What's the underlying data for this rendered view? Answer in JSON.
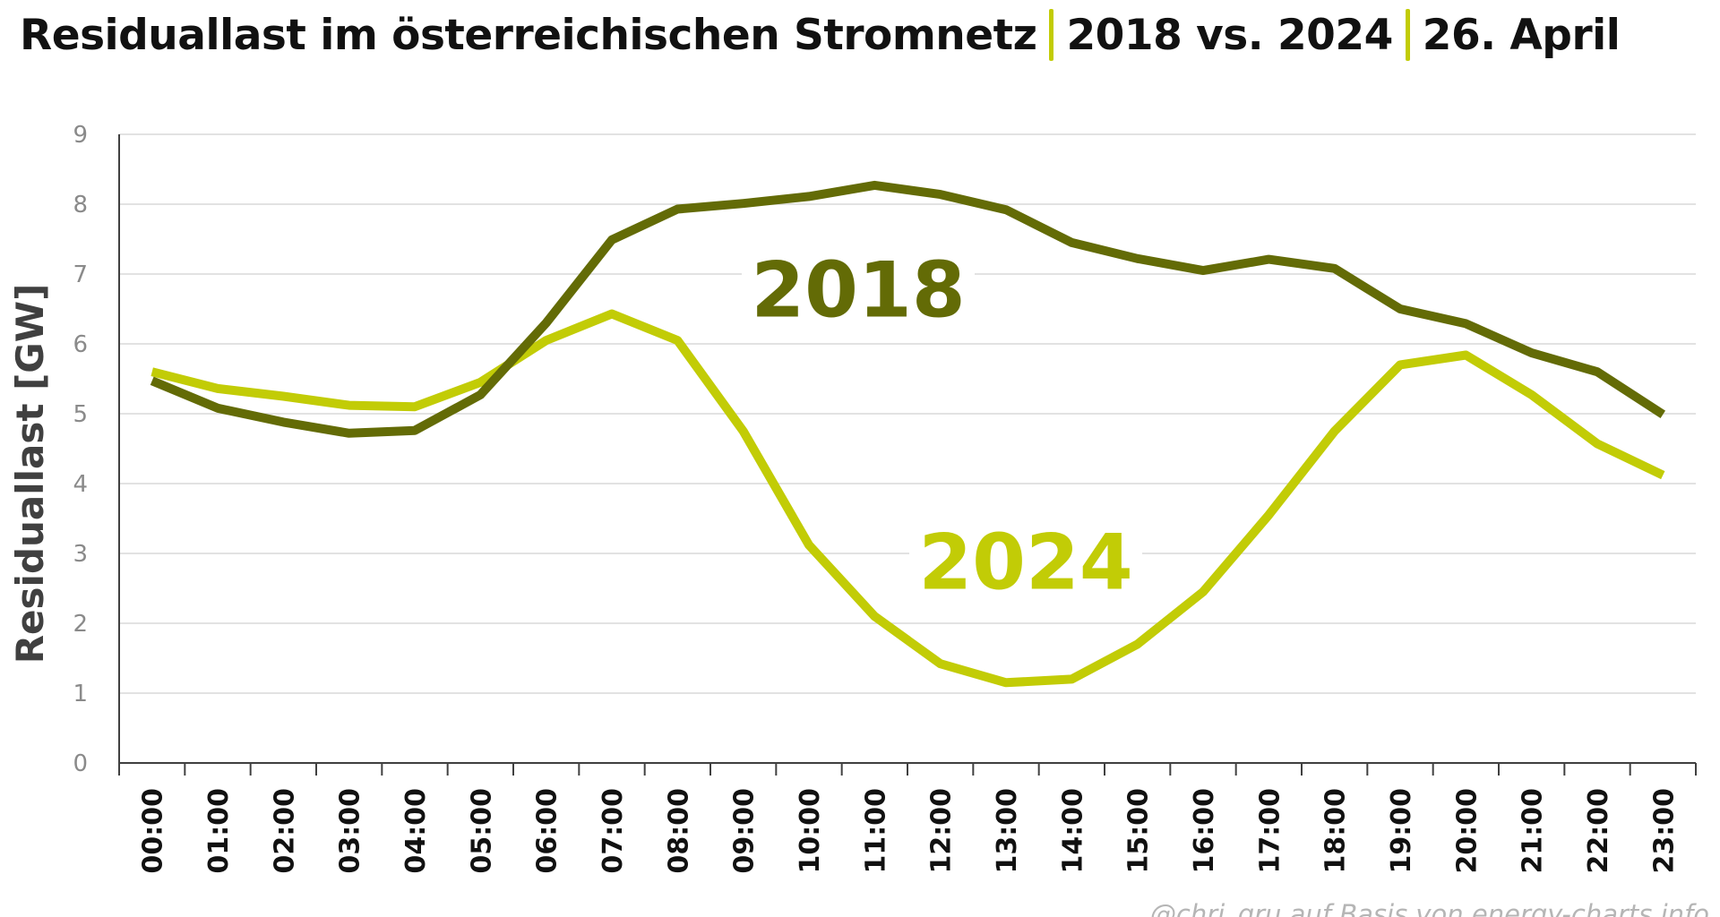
{
  "header": {
    "title_part1": "Residuallast im österreichischen Stromnetz",
    "title_part2": "2018 vs. 2024",
    "title_part3": "26. April"
  },
  "footer": {
    "credit": "@chri_gru auf Basis von energy-charts.info"
  },
  "colors": {
    "series_2018": "#636b06",
    "series_2024": "#c2cc06",
    "separator": "#c2cc06",
    "grid": "#d9d9d9",
    "axis": "#404040",
    "tick_label": "#8a8a8a",
    "text": "#111111"
  },
  "chart_data": {
    "type": "line",
    "title": "Residuallast im österreichischen Stromnetz | 2018 vs. 2024 | 26. April",
    "xlabel": "",
    "ylabel": "Residuallast [GW]",
    "ylim": [
      0,
      9
    ],
    "yticks": [
      0,
      1,
      2,
      3,
      4,
      5,
      6,
      7,
      8,
      9
    ],
    "grid": true,
    "legend": "inline labels on lines",
    "x": [
      "00:00",
      "01:00",
      "02:00",
      "03:00",
      "04:00",
      "05:00",
      "06:00",
      "07:00",
      "08:00",
      "09:00",
      "10:00",
      "11:00",
      "12:00",
      "13:00",
      "14:00",
      "15:00",
      "16:00",
      "17:00",
      "18:00",
      "19:00",
      "20:00",
      "21:00",
      "22:00",
      "23:00"
    ],
    "series": [
      {
        "name": "2018",
        "values": [
          5.47,
          5.08,
          4.88,
          4.72,
          4.76,
          5.27,
          6.3,
          7.49,
          7.93,
          8.01,
          8.11,
          8.27,
          8.14,
          7.92,
          7.45,
          7.22,
          7.05,
          7.21,
          7.08,
          6.5,
          6.29,
          5.87,
          5.6,
          4.99
        ]
      },
      {
        "name": "2024",
        "values": [
          5.6,
          5.36,
          5.25,
          5.12,
          5.1,
          5.45,
          6.05,
          6.43,
          6.05,
          4.75,
          3.12,
          2.1,
          1.42,
          1.15,
          1.2,
          1.7,
          2.45,
          3.55,
          4.75,
          5.7,
          5.84,
          5.27,
          4.57,
          4.12
        ]
      }
    ]
  }
}
